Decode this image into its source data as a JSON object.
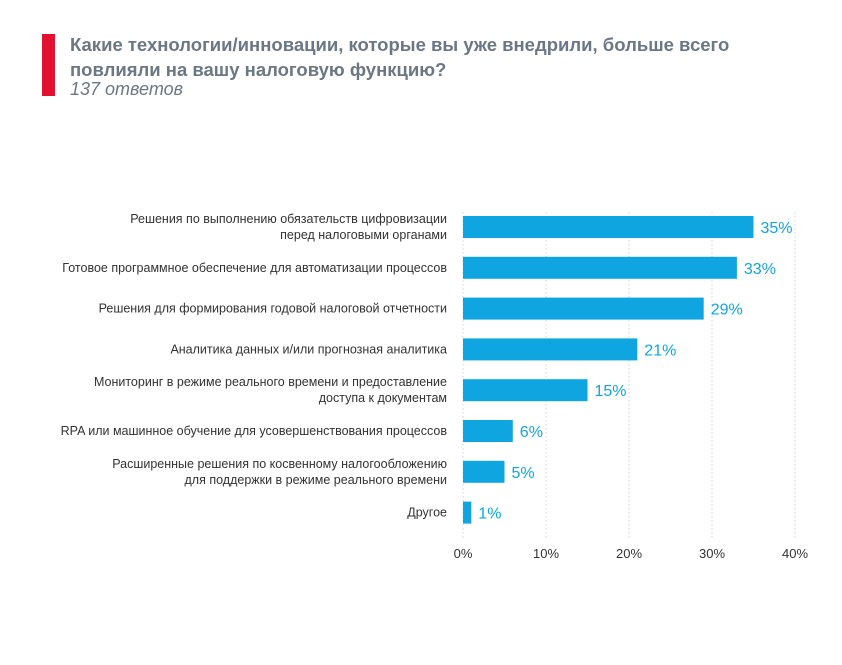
{
  "header": {
    "title": "Какие технологии/инновации, которые вы уже внедрили, больше всего повлияли на вашу налоговую функцию?",
    "subtitle": "137 ответов"
  },
  "colors": {
    "accent": "#e3102f",
    "bar": "#0ea5e0",
    "label": "#0ea5e0",
    "text": "#333333",
    "grid": "#c9d5df"
  },
  "chart_data": {
    "type": "bar",
    "orientation": "horizontal",
    "title": "Какие технологии/инновации, которые вы уже внедрили, больше всего повлияли на вашу налоговую функцию?",
    "subtitle": "137 ответов",
    "categories": [
      [
        "Решения по выполнению обязательств цифровизации",
        "перед налоговыми органами"
      ],
      [
        "Готовое программное обеспечение для автоматизации процессов"
      ],
      [
        "Решения для формирования годовой налоговой отчетности"
      ],
      [
        "Аналитика данных и/или прогнозная аналитика"
      ],
      [
        "Мониторинг в режиме реального времени и предоставление",
        "доступа к документам"
      ],
      [
        "RPA или машинное обучение для усовершенствования процессов"
      ],
      [
        "Расширенные решения по косвенному налогообложению",
        "для поддержки в режиме реального времени"
      ],
      [
        "Другое"
      ]
    ],
    "values": [
      35,
      33,
      29,
      21,
      15,
      6,
      5,
      1
    ],
    "value_labels": [
      "35%",
      "33%",
      "29%",
      "21%",
      "15%",
      "6%",
      "5%",
      "1%"
    ],
    "xlim": [
      0,
      40
    ],
    "xticks": [
      0,
      10,
      20,
      30,
      40
    ],
    "xtick_labels": [
      "0%",
      "10%",
      "20%",
      "30%",
      "40%"
    ],
    "grid": true,
    "legend": "none"
  }
}
